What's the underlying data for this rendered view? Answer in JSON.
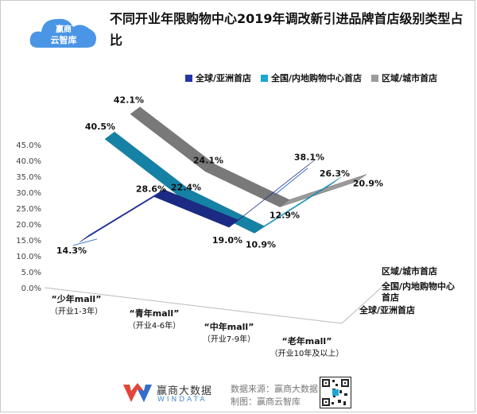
{
  "page": {
    "title": "不同开业年限购物中心2019年调改新引进品牌首店级别类型占比",
    "logo_line1": "赢商",
    "logo_line2": "云智库",
    "footer_brand_cn": "赢商大数据",
    "footer_brand_en": "WINDATA",
    "footer_source": "数据来源：赢商大数据",
    "footer_made": "制图：赢商云智库",
    "colors": {
      "global": "#2236a8",
      "national": "#1ba7d4",
      "regional": "#9b9b9b",
      "accent": "#2e6fd1"
    },
    "icons": [
      "cloud-logo-icon",
      "windata-logo-icon",
      "qr-code-icon"
    ]
  },
  "chart_data": {
    "type": "line",
    "style": "3d-ribbon",
    "categories": [
      "“少年mall”\n（开业1-3年）",
      "“青年mall”\n（开业4-6年）",
      "“中年mall”\n（开业7-9年）",
      "“老年mall”\n（开业10年及以上）"
    ],
    "depth_labels": [
      "区域/城市首店",
      "全国/内地购物中心\n首店",
      "全球/亚洲首店"
    ],
    "series": [
      {
        "name": "全球/亚洲首店",
        "values": [
          14.3,
          28.6,
          19.0,
          38.1
        ],
        "labels": [
          "14.3%",
          "28.6%",
          "19.0%",
          "38.1%"
        ],
        "color": "#2236a8"
      },
      {
        "name": "全国/内地购物中心首店",
        "values": [
          40.5,
          22.4,
          10.9,
          26.3
        ],
        "labels": [
          "40.5%",
          "22.4%",
          "10.9%",
          "26.3%"
        ],
        "color": "#1ba7d4"
      },
      {
        "name": "区域/城市首店",
        "values": [
          42.1,
          24.1,
          12.9,
          20.9
        ],
        "labels": [
          "42.1%",
          "24.1%",
          "12.9%",
          "20.9%"
        ],
        "color": "#9b9b9b"
      }
    ],
    "yticks": [
      "0.0%",
      "5.0%",
      "10.0%",
      "15.0%",
      "20.0%",
      "25.0%",
      "30.0%",
      "35.0%",
      "40.0%",
      "45.0%"
    ],
    "ylim": [
      0,
      45
    ],
    "legend_position": "top-right"
  }
}
